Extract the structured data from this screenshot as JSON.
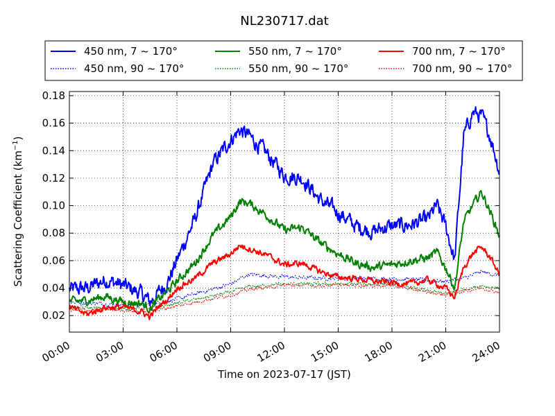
{
  "chart_data": {
    "type": "line",
    "title": "NL230717.dat",
    "xlabel": "Time on 2023-07-17 (JST)",
    "ylabel": "Scattering Coefficient (km",
    "ylabel_sup": "−1",
    "ylabel_end": ")",
    "xlim": [
      "00:00",
      "24:00"
    ],
    "ylim": [
      0.008,
      0.183
    ],
    "x_ticks": [
      "00:00",
      "03:00",
      "06:00",
      "09:00",
      "12:00",
      "15:00",
      "18:00",
      "21:00",
      "24:00"
    ],
    "y_ticks": [
      "0.02",
      "0.04",
      "0.06",
      "0.08",
      "0.10",
      "0.12",
      "0.14",
      "0.16",
      "0.18"
    ],
    "grid": true,
    "legend_position": "top, above plot, 3 columns",
    "series": [
      {
        "name": "450 nm, 7 ~ 170°",
        "color": "#0000ff",
        "style": "solid",
        "x": [
          0,
          1,
          2,
          3,
          4,
          4.5,
          5,
          5.5,
          6,
          7,
          8,
          9,
          9.5,
          10,
          11,
          12,
          13,
          14,
          15,
          16,
          17,
          17.5,
          18,
          19,
          20,
          20.5,
          21,
          21.5,
          22,
          22.5,
          23,
          23.5,
          24
        ],
        "y": [
          0.039,
          0.04,
          0.046,
          0.042,
          0.036,
          0.03,
          0.037,
          0.045,
          0.06,
          0.09,
          0.13,
          0.148,
          0.155,
          0.151,
          0.138,
          0.122,
          0.12,
          0.104,
          0.095,
          0.085,
          0.081,
          0.084,
          0.085,
          0.086,
          0.09,
          0.1,
          0.085,
          0.06,
          0.15,
          0.168,
          0.165,
          0.15,
          0.125
        ],
        "amp": 0.0045
      },
      {
        "name": "450 nm, 90 ~ 170°",
        "color": "#0000ff",
        "style": "dotted",
        "x": [
          0,
          3,
          4.5,
          6,
          9,
          10,
          12,
          15,
          18,
          21,
          22,
          23,
          24
        ],
        "y": [
          0.03,
          0.028,
          0.028,
          0.032,
          0.043,
          0.05,
          0.048,
          0.047,
          0.047,
          0.045,
          0.047,
          0.052,
          0.049
        ],
        "amp": 0.0012
      },
      {
        "name": "550 nm, 7 ~ 170°",
        "color": "#008000",
        "style": "solid",
        "x": [
          0,
          1,
          2,
          3,
          4,
          4.5,
          5,
          5.5,
          6,
          7,
          8,
          9,
          9.5,
          10,
          11,
          12,
          13,
          14,
          15,
          16,
          17,
          18,
          19,
          20,
          20.5,
          21,
          21.5,
          22,
          22.5,
          23,
          23.5,
          24
        ],
        "y": [
          0.03,
          0.031,
          0.034,
          0.03,
          0.029,
          0.025,
          0.032,
          0.038,
          0.045,
          0.058,
          0.078,
          0.092,
          0.103,
          0.102,
          0.093,
          0.082,
          0.084,
          0.073,
          0.065,
          0.058,
          0.055,
          0.057,
          0.06,
          0.062,
          0.066,
          0.055,
          0.04,
          0.088,
          0.1,
          0.11,
          0.095,
          0.078
        ],
        "amp": 0.0025
      },
      {
        "name": "550 nm, 90 ~ 170°",
        "color": "#008000",
        "style": "dotted",
        "x": [
          0,
          3,
          4.5,
          6,
          9,
          10,
          12,
          15,
          18,
          20,
          21,
          22,
          23,
          24
        ],
        "y": [
          0.026,
          0.025,
          0.025,
          0.029,
          0.037,
          0.041,
          0.043,
          0.043,
          0.043,
          0.038,
          0.036,
          0.039,
          0.042,
          0.04
        ],
        "amp": 0.001
      },
      {
        "name": "700 nm, 7 ~ 170°",
        "color": "#ff0000",
        "style": "solid",
        "x": [
          0,
          1,
          2,
          3,
          4,
          4.5,
          5,
          5.5,
          6,
          7,
          8,
          9,
          9.5,
          10,
          11,
          12,
          13,
          14,
          15,
          16,
          17,
          18,
          19,
          20,
          21,
          21.5,
          22,
          22.5,
          23,
          23.5,
          24
        ],
        "y": [
          0.026,
          0.021,
          0.026,
          0.026,
          0.023,
          0.019,
          0.027,
          0.032,
          0.04,
          0.047,
          0.058,
          0.065,
          0.071,
          0.069,
          0.064,
          0.057,
          0.058,
          0.052,
          0.048,
          0.047,
          0.045,
          0.044,
          0.043,
          0.046,
          0.04,
          0.033,
          0.055,
          0.065,
          0.07,
          0.062,
          0.05
        ],
        "amp": 0.0018
      },
      {
        "name": "700 nm, 90 ~ 170°",
        "color": "#ff0000",
        "style": "dotted",
        "x": [
          0,
          3,
          4.5,
          6,
          9,
          10,
          12,
          15,
          18,
          20,
          21,
          22,
          23,
          24
        ],
        "y": [
          0.024,
          0.024,
          0.023,
          0.027,
          0.035,
          0.039,
          0.042,
          0.042,
          0.042,
          0.037,
          0.035,
          0.038,
          0.04,
          0.037
        ],
        "amp": 0.001
      }
    ]
  }
}
